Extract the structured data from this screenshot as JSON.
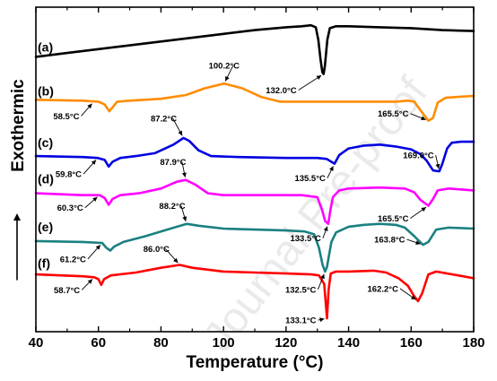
{
  "watermark": "Journal Pre-proof",
  "chart_data": {
    "type": "line",
    "title": "",
    "xlabel": "Temperature (°C)",
    "ylabel": "Exothermic",
    "xlim": [
      40,
      180
    ],
    "xticks": [
      40,
      60,
      80,
      100,
      120,
      140,
      160,
      180
    ],
    "grid": false,
    "series": [
      {
        "name": "(a)",
        "color": "#000000",
        "points": [
          [
            40,
            5.4
          ],
          [
            50,
            5.6
          ],
          [
            60,
            5.8
          ],
          [
            70,
            6.0
          ],
          [
            80,
            6.2
          ],
          [
            90,
            6.4
          ],
          [
            100,
            6.6
          ],
          [
            110,
            6.8
          ],
          [
            120,
            6.95
          ],
          [
            125,
            7.0
          ],
          [
            128,
            7.05
          ],
          [
            129.5,
            6.95
          ],
          [
            130.3,
            6.3
          ],
          [
            131.0,
            5.3
          ],
          [
            131.6,
            4.6
          ],
          [
            132.0,
            4.5
          ],
          [
            132.4,
            4.9
          ],
          [
            133.2,
            6.3
          ],
          [
            134.0,
            6.9
          ],
          [
            136,
            7.0
          ],
          [
            140,
            7.0
          ],
          [
            150,
            6.95
          ],
          [
            160,
            6.9
          ],
          [
            170,
            6.8
          ],
          [
            180,
            6.75
          ]
        ],
        "annotations": [
          {
            "text": "132.0°C",
            "x": 132.0,
            "y": 4.5
          }
        ]
      },
      {
        "name": "(b)",
        "color": "#ff8c00",
        "points": [
          [
            40,
            3.15
          ],
          [
            55,
            3.1
          ],
          [
            60,
            3.05
          ],
          [
            62.0,
            2.9
          ],
          [
            63.5,
            2.55
          ],
          [
            64.5,
            2.75
          ],
          [
            66,
            3.05
          ],
          [
            70,
            3.1
          ],
          [
            80,
            3.2
          ],
          [
            88,
            3.4
          ],
          [
            94,
            3.75
          ],
          [
            100.2,
            4.0
          ],
          [
            106,
            3.75
          ],
          [
            112,
            3.3
          ],
          [
            118,
            3.05
          ],
          [
            125,
            3.05
          ],
          [
            140,
            3.05
          ],
          [
            155,
            3.05
          ],
          [
            159,
            3.1
          ],
          [
            161,
            3.05
          ],
          [
            163,
            2.6
          ],
          [
            165.5,
            2.05
          ],
          [
            167,
            2.2
          ],
          [
            168.5,
            3.0
          ],
          [
            171,
            3.25
          ],
          [
            175,
            3.3
          ],
          [
            180,
            3.35
          ]
        ],
        "annotations": [
          {
            "text": "58.5°C",
            "x": 58.5,
            "y": 3.05
          },
          {
            "text": "100.2°C",
            "x": 100.2,
            "y": 4.0
          },
          {
            "text": "165.5°C",
            "x": 165.5,
            "y": 2.05
          }
        ]
      },
      {
        "name": "(c)",
        "color": "#0000e0",
        "points": [
          [
            40,
            0.2
          ],
          [
            55,
            0.15
          ],
          [
            59.8,
            0.1
          ],
          [
            62,
            0.0
          ],
          [
            63.3,
            -0.35
          ],
          [
            64.5,
            -0.1
          ],
          [
            67,
            0.1
          ],
          [
            72,
            0.2
          ],
          [
            78,
            0.35
          ],
          [
            84,
            0.8
          ],
          [
            87.2,
            1.15
          ],
          [
            89,
            1.0
          ],
          [
            92,
            0.5
          ],
          [
            96,
            0.2
          ],
          [
            105,
            0.15
          ],
          [
            120,
            0.1
          ],
          [
            130,
            0.1
          ],
          [
            133,
            0.05
          ],
          [
            135.5,
            -0.2
          ],
          [
            137,
            0.25
          ],
          [
            140,
            0.6
          ],
          [
            145,
            0.75
          ],
          [
            150,
            0.8
          ],
          [
            155,
            0.7
          ],
          [
            160,
            0.55
          ],
          [
            163,
            0.3
          ],
          [
            165,
            -0.05
          ],
          [
            167,
            -0.55
          ],
          [
            169.0,
            -0.6
          ],
          [
            170,
            -0.2
          ],
          [
            171.5,
            0.6
          ],
          [
            173,
            0.9
          ],
          [
            176,
            0.95
          ],
          [
            180,
            0.95
          ]
        ],
        "annotations": [
          {
            "text": "59.8°C",
            "x": 59.8,
            "y": 0.1
          },
          {
            "text": "87.2°C",
            "x": 87.2,
            "y": 1.15
          },
          {
            "text": "135.5°C",
            "x": 135.5,
            "y": -0.2
          },
          {
            "text": "169.0°C",
            "x": 169.0,
            "y": -0.6
          }
        ]
      },
      {
        "name": "(d)",
        "color": "#ff00ff",
        "points": [
          [
            40,
            -1.75
          ],
          [
            55,
            -1.85
          ],
          [
            60.3,
            -1.85
          ],
          [
            62,
            -2.0
          ],
          [
            63.3,
            -2.35
          ],
          [
            64.5,
            -2.05
          ],
          [
            67,
            -1.85
          ],
          [
            73,
            -1.75
          ],
          [
            80,
            -1.5
          ],
          [
            85,
            -1.15
          ],
          [
            87.9,
            -1.05
          ],
          [
            91,
            -1.3
          ],
          [
            95,
            -1.75
          ],
          [
            100,
            -1.85
          ],
          [
            115,
            -1.85
          ],
          [
            125,
            -1.85
          ],
          [
            130,
            -1.95
          ],
          [
            131.5,
            -2.6
          ],
          [
            132.5,
            -3.2
          ],
          [
            133.5,
            -3.35
          ],
          [
            134.2,
            -2.6
          ],
          [
            135,
            -1.95
          ],
          [
            137,
            -1.6
          ],
          [
            140,
            -1.5
          ],
          [
            150,
            -1.45
          ],
          [
            158,
            -1.5
          ],
          [
            161,
            -1.7
          ],
          [
            163,
            -2.1
          ],
          [
            165.5,
            -2.4
          ],
          [
            167,
            -2.05
          ],
          [
            168.5,
            -1.6
          ],
          [
            172,
            -1.5
          ],
          [
            180,
            -1.6
          ]
        ],
        "annotations": [
          {
            "text": "60.3°C",
            "x": 60.3,
            "y": -1.85
          },
          {
            "text": "87.9°C",
            "x": 87.9,
            "y": -1.05
          },
          {
            "text": "133.5°C",
            "x": 133.5,
            "y": -3.35
          },
          {
            "text": "165.5°C",
            "x": 165.5,
            "y": -2.4
          }
        ]
      },
      {
        "name": "(e)",
        "color": "#1a8080",
        "points": [
          [
            40,
            -4.25
          ],
          [
            55,
            -4.3
          ],
          [
            61.2,
            -4.35
          ],
          [
            62.5,
            -4.6
          ],
          [
            63.8,
            -4.75
          ],
          [
            65,
            -4.55
          ],
          [
            68,
            -4.3
          ],
          [
            75,
            -4.0
          ],
          [
            82,
            -3.65
          ],
          [
            88.2,
            -3.35
          ],
          [
            92,
            -3.45
          ],
          [
            100,
            -3.6
          ],
          [
            110,
            -3.65
          ],
          [
            120,
            -3.7
          ],
          [
            126,
            -3.75
          ],
          [
            129,
            -3.9
          ],
          [
            130.5,
            -4.6
          ],
          [
            131.7,
            -5.5
          ],
          [
            132.5,
            -5.85
          ],
          [
            133.1,
            -5.6
          ],
          [
            134.5,
            -4.3
          ],
          [
            136,
            -3.8
          ],
          [
            140,
            -3.5
          ],
          [
            145,
            -3.4
          ],
          [
            150,
            -3.35
          ],
          [
            155,
            -3.4
          ],
          [
            158,
            -3.55
          ],
          [
            161,
            -4.0
          ],
          [
            163.8,
            -4.45
          ],
          [
            165.5,
            -4.3
          ],
          [
            168,
            -3.65
          ],
          [
            172,
            -3.55
          ],
          [
            180,
            -3.6
          ]
        ],
        "annotations": [
          {
            "text": "61.2°C",
            "x": 61.2,
            "y": -4.35
          },
          {
            "text": "88.2°C",
            "x": 88.2,
            "y": -3.35
          },
          {
            "text": "132.5°C",
            "x": 132.5,
            "y": -5.85
          },
          {
            "text": "163.8°C",
            "x": 163.8,
            "y": -4.45
          }
        ]
      },
      {
        "name": "(f)",
        "color": "#ff0000",
        "points": [
          [
            40,
            -6.0
          ],
          [
            55,
            -6.1
          ],
          [
            58.7,
            -6.15
          ],
          [
            60,
            -6.25
          ],
          [
            60.9,
            -6.55
          ],
          [
            61.8,
            -6.25
          ],
          [
            64,
            -6.05
          ],
          [
            72,
            -5.9
          ],
          [
            80,
            -5.65
          ],
          [
            86.0,
            -5.5
          ],
          [
            90,
            -5.65
          ],
          [
            100,
            -5.85
          ],
          [
            110,
            -5.9
          ],
          [
            120,
            -5.95
          ],
          [
            128,
            -6.0
          ],
          [
            130.5,
            -6.05
          ],
          [
            132.2,
            -6.5
          ],
          [
            133.1,
            -8.3
          ],
          [
            133.6,
            -6.8
          ],
          [
            134.3,
            -5.95
          ],
          [
            136,
            -5.85
          ],
          [
            140,
            -5.85
          ],
          [
            148,
            -5.8
          ],
          [
            152,
            -5.9
          ],
          [
            156,
            -6.2
          ],
          [
            159,
            -6.6
          ],
          [
            160.8,
            -7.1
          ],
          [
            162.2,
            -7.4
          ],
          [
            163.5,
            -7.0
          ],
          [
            165.5,
            -6.0
          ],
          [
            168,
            -5.85
          ],
          [
            175,
            -6.05
          ],
          [
            180,
            -6.2
          ]
        ],
        "annotations": [
          {
            "text": "58.7°C",
            "x": 58.7,
            "y": -6.15
          },
          {
            "text": "86.0°C",
            "x": 86.0,
            "y": -5.5
          },
          {
            "text": "133.1°C",
            "x": 133.1,
            "y": -8.3
          },
          {
            "text": "162.2°C",
            "x": 162.2,
            "y": -7.4
          }
        ]
      }
    ]
  }
}
